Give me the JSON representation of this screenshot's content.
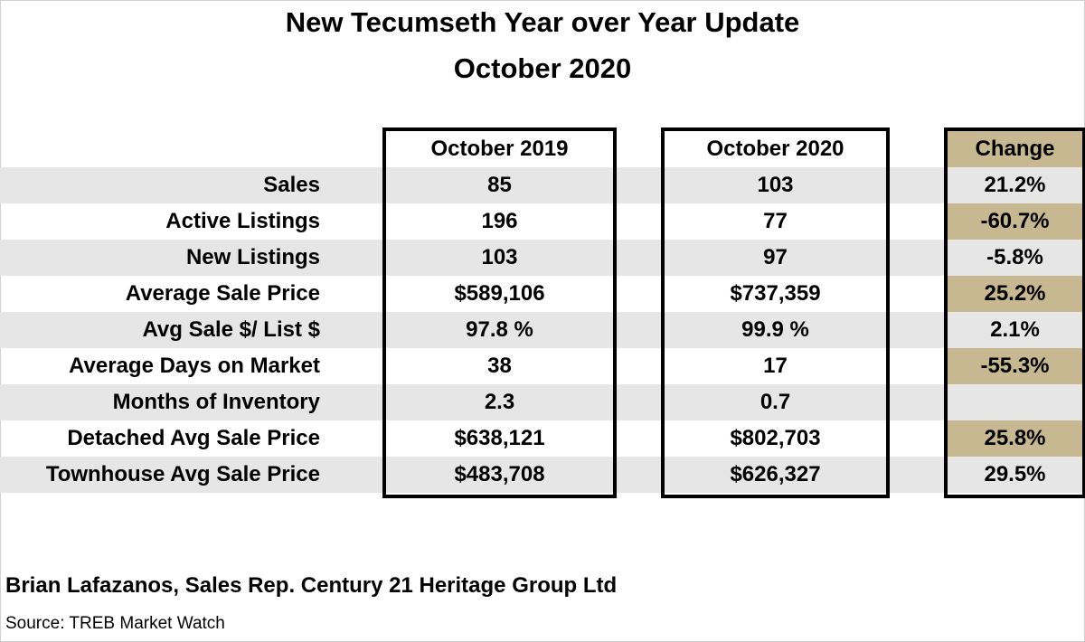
{
  "title": {
    "line1": "New Tecumseth Year over Year Update",
    "line2": "October 2020"
  },
  "table": {
    "headers": {
      "col1": "October 2019",
      "col2": "October 2020",
      "change": "Change"
    },
    "rows": [
      {
        "label": "Sales",
        "oct2019": "85",
        "oct2020": "103",
        "change": "21.2%",
        "highlight": false
      },
      {
        "label": "Active Listings",
        "oct2019": "196",
        "oct2020": "77",
        "change": "-60.7%",
        "highlight": true
      },
      {
        "label": "New Listings",
        "oct2019": "103",
        "oct2020": "97",
        "change": "-5.8%",
        "highlight": false
      },
      {
        "label": "Average Sale Price",
        "oct2019": "$589,106",
        "oct2020": "$737,359",
        "change": "25.2%",
        "highlight": true
      },
      {
        "label": "Avg Sale $/ List $",
        "oct2019": "97.8 %",
        "oct2020": "99.9 %",
        "change": "2.1%",
        "highlight": false
      },
      {
        "label": "Average Days on Market",
        "oct2019": "38",
        "oct2020": "17",
        "change": "-55.3%",
        "highlight": true
      },
      {
        "label": "Months of Inventory",
        "oct2019": "2.3",
        "oct2020": "0.7",
        "change": "",
        "highlight": false
      },
      {
        "label": "Detached Avg Sale Price",
        "oct2019": "$638,121",
        "oct2020": "$802,703",
        "change": "25.8%",
        "highlight": true
      },
      {
        "label": "Townhouse Avg Sale Price",
        "oct2019": "$483,708",
        "oct2020": "$626,327",
        "change": "29.5%",
        "highlight": false
      }
    ]
  },
  "footer": {
    "author": "Brian Lafazanos, Sales Rep. Century 21 Heritage Group Ltd",
    "source": "Source: TREB Market Watch"
  },
  "colors": {
    "row_shade": "#e7e6e6",
    "change_highlight": "#c8b891",
    "border": "#000000"
  }
}
